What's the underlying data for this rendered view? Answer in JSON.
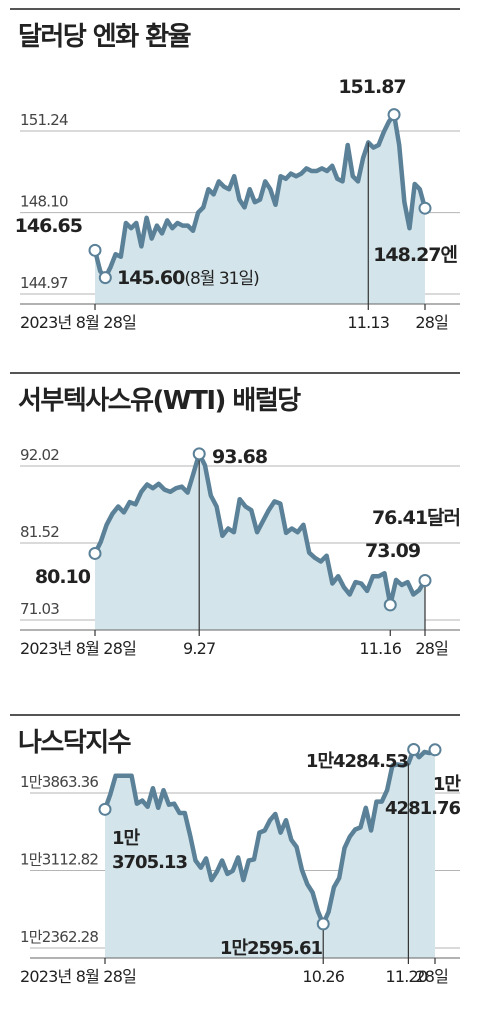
{
  "chart_data": [
    {
      "type": "area",
      "title": "달러당 엔화 환율",
      "yticks": [
        {
          "value": 151.24,
          "label": "151.24"
        },
        {
          "value": 148.1,
          "label": "148.10"
        },
        {
          "value": 144.97,
          "label": "144.97"
        }
      ],
      "ylim": [
        144.97,
        152.0
      ],
      "xlim": [
        0,
        64
      ],
      "xticks": [
        {
          "x": 0,
          "label": "2023년 8월 28일"
        },
        {
          "x": 53,
          "label": "11.13"
        },
        {
          "x": 64,
          "label": "28일"
        }
      ],
      "series": [
        {
          "values": [
            [
              0,
              146.65
            ],
            [
              1,
              145.85
            ],
            [
              2,
              145.6
            ],
            [
              3,
              146.0
            ],
            [
              4,
              146.5
            ],
            [
              5,
              146.4
            ],
            [
              6,
              147.7
            ],
            [
              7,
              147.5
            ],
            [
              8,
              147.7
            ],
            [
              9,
              146.8
            ],
            [
              10,
              147.9
            ],
            [
              11,
              147.1
            ],
            [
              12,
              147.6
            ],
            [
              13,
              147.3
            ],
            [
              14,
              147.8
            ],
            [
              15,
              147.5
            ],
            [
              16,
              147.7
            ],
            [
              17,
              147.6
            ],
            [
              18,
              147.6
            ],
            [
              19,
              147.4
            ],
            [
              20,
              148.1
            ],
            [
              21,
              148.3
            ],
            [
              22,
              149.0
            ],
            [
              23,
              148.8
            ],
            [
              24,
              149.3
            ],
            [
              25,
              149.1
            ],
            [
              26,
              149.0
            ],
            [
              27,
              149.5
            ],
            [
              28,
              148.6
            ],
            [
              29,
              148.3
            ],
            [
              30,
              149.0
            ],
            [
              31,
              148.5
            ],
            [
              32,
              148.6
            ],
            [
              33,
              149.3
            ],
            [
              34,
              149.0
            ],
            [
              35,
              148.4
            ],
            [
              36,
              149.5
            ],
            [
              37,
              149.4
            ],
            [
              38,
              149.6
            ],
            [
              39,
              149.5
            ],
            [
              40,
              149.6
            ],
            [
              41,
              149.8
            ],
            [
              42,
              149.7
            ],
            [
              43,
              149.7
            ],
            [
              44,
              149.8
            ],
            [
              45,
              149.7
            ],
            [
              46,
              149.9
            ],
            [
              47,
              149.4
            ],
            [
              48,
              149.3
            ],
            [
              49,
              150.7
            ],
            [
              50,
              149.5
            ],
            [
              51,
              149.3
            ],
            [
              52,
              150.2
            ],
            [
              53,
              150.8
            ],
            [
              54,
              150.6
            ],
            [
              55,
              150.7
            ],
            [
              56,
              151.2
            ],
            [
              57,
              151.6
            ],
            [
              58,
              151.87
            ],
            [
              59,
              150.7
            ],
            [
              60,
              148.5
            ],
            [
              61,
              147.5
            ],
            [
              62,
              149.2
            ],
            [
              63,
              149.0
            ],
            [
              64,
              148.27
            ]
          ]
        }
      ],
      "annotations": [
        {
          "x": 0,
          "y": 146.65,
          "label": "146.65"
        },
        {
          "x": 2,
          "y": 145.6,
          "label": "145.60",
          "note": "(8월 31일)"
        },
        {
          "x": 58,
          "y": 151.87,
          "label": "151.87"
        },
        {
          "x": 64,
          "y": 148.27,
          "label": "148.27엔"
        }
      ]
    },
    {
      "type": "area",
      "title": "서부텍사스유(WTI)  배럴당",
      "yticks": [
        {
          "value": 92.02,
          "label": "92.02"
        },
        {
          "value": 81.52,
          "label": "81.52"
        },
        {
          "value": 71.03,
          "label": "71.03"
        }
      ],
      "ylim": [
        71.03,
        94.5
      ],
      "xlim": [
        0,
        57
      ],
      "xticks": [
        {
          "x": 0,
          "label": "2023년 8월 28일"
        },
        {
          "x": 18,
          "label": "9.27"
        },
        {
          "x": 51,
          "label": "11.16"
        },
        {
          "x": 57,
          "label": "28일"
        }
      ],
      "series": [
        {
          "values": [
            [
              0,
              80.1
            ],
            [
              1,
              81.7
            ],
            [
              2,
              84.0
            ],
            [
              3,
              85.5
            ],
            [
              4,
              86.5
            ],
            [
              5,
              85.7
            ],
            [
              6,
              87.1
            ],
            [
              7,
              86.8
            ],
            [
              8,
              88.5
            ],
            [
              9,
              89.5
            ],
            [
              10,
              89.0
            ],
            [
              11,
              89.6
            ],
            [
              12,
              88.8
            ],
            [
              13,
              88.5
            ],
            [
              14,
              89.0
            ],
            [
              15,
              89.2
            ],
            [
              16,
              88.4
            ],
            [
              17,
              91.0
            ],
            [
              18,
              93.68
            ],
            [
              19,
              92.1
            ],
            [
              20,
              88.0
            ],
            [
              21,
              86.5
            ],
            [
              22,
              82.5
            ],
            [
              23,
              83.5
            ],
            [
              24,
              83.0
            ],
            [
              25,
              87.5
            ],
            [
              26,
              86.5
            ],
            [
              27,
              86.0
            ],
            [
              28,
              83.0
            ],
            [
              29,
              84.5
            ],
            [
              30,
              86.0
            ],
            [
              31,
              87.2
            ],
            [
              32,
              86.9
            ],
            [
              33,
              82.9
            ],
            [
              34,
              83.5
            ],
            [
              35,
              83.0
            ],
            [
              36,
              84.0
            ],
            [
              37,
              80.2
            ],
            [
              38,
              79.5
            ],
            [
              39,
              79.0
            ],
            [
              40,
              79.8
            ],
            [
              41,
              76.0
            ],
            [
              42,
              77.0
            ],
            [
              43,
              75.5
            ],
            [
              44,
              74.5
            ],
            [
              45,
              76.2
            ],
            [
              46,
              76.0
            ],
            [
              47,
              75.0
            ],
            [
              48,
              77.0
            ],
            [
              49,
              77.0
            ],
            [
              50,
              77.4
            ],
            [
              51,
              73.09
            ],
            [
              52,
              76.5
            ],
            [
              53,
              75.8
            ],
            [
              54,
              76.2
            ],
            [
              55,
              74.5
            ],
            [
              56,
              75.1
            ],
            [
              57,
              76.41
            ]
          ]
        }
      ],
      "annotations": [
        {
          "x": 0,
          "y": 80.1,
          "label": "80.10"
        },
        {
          "x": 18,
          "y": 93.68,
          "label": "93.68"
        },
        {
          "x": 51,
          "y": 73.09,
          "label": "73.09"
        },
        {
          "x": 57,
          "y": 76.41,
          "label": "76.41달러"
        }
      ]
    },
    {
      "type": "area",
      "title": "나스닥지수",
      "yticks": [
        {
          "value": 13863.36,
          "label": "1만3863.36"
        },
        {
          "value": 13112.82,
          "label": "1만3112.82"
        },
        {
          "value": 12362.28,
          "label": "1만2362.28"
        }
      ],
      "ylim": [
        12362.28,
        14500
      ],
      "xlim": [
        0,
        62
      ],
      "xticks": [
        {
          "x": 0,
          "label": "2023년 8월 28일"
        },
        {
          "x": 41,
          "label": "10.26"
        },
        {
          "x": 57,
          "label": "11.20"
        },
        {
          "x": 62,
          "label": "28일"
        }
      ],
      "series": [
        {
          "values": [
            [
              0,
              13705.13
            ],
            [
              1,
              13850
            ],
            [
              2,
              14030
            ],
            [
              3,
              14030
            ],
            [
              4,
              14030
            ],
            [
              5,
              14030
            ],
            [
              6,
              13760
            ],
            [
              7,
              13790
            ],
            [
              8,
              13730
            ],
            [
              9,
              13910
            ],
            [
              10,
              13720
            ],
            [
              11,
              13890
            ],
            [
              12,
              13750
            ],
            [
              13,
              13760
            ],
            [
              14,
              13670
            ],
            [
              15,
              13670
            ],
            [
              16,
              13450
            ],
            [
              17,
              13210
            ],
            [
              18,
              13140
            ],
            [
              19,
              13230
            ],
            [
              20,
              13020
            ],
            [
              21,
              13100
            ],
            [
              22,
              13210
            ],
            [
              23,
              13080
            ],
            [
              24,
              13110
            ],
            [
              25,
              13240
            ],
            [
              26,
              13020
            ],
            [
              27,
              13210
            ],
            [
              28,
              13220
            ],
            [
              29,
              13480
            ],
            [
              30,
              13500
            ],
            [
              31,
              13600
            ],
            [
              32,
              13660
            ],
            [
              33,
              13480
            ],
            [
              34,
              13600
            ],
            [
              35,
              13410
            ],
            [
              36,
              13340
            ],
            [
              37,
              13120
            ],
            [
              38,
              12980
            ],
            [
              39,
              12900
            ],
            [
              40,
              12720
            ],
            [
              41,
              12595.61
            ],
            [
              42,
              12710
            ],
            [
              43,
              12950
            ],
            [
              44,
              13040
            ],
            [
              45,
              13330
            ],
            [
              46,
              13440
            ],
            [
              47,
              13510
            ],
            [
              48,
              13530
            ],
            [
              49,
              13720
            ],
            [
              50,
              13500
            ],
            [
              51,
              13780
            ],
            [
              52,
              13780
            ],
            [
              53,
              13890
            ],
            [
              54,
              14130
            ],
            [
              55,
              14140
            ],
            [
              56,
              14130
            ],
            [
              57,
              14150
            ],
            [
              58,
              14284.53
            ],
            [
              59,
              14210
            ],
            [
              60,
              14260
            ],
            [
              61,
              14250
            ],
            [
              62,
              14281.76
            ]
          ]
        }
      ],
      "annotations": [
        {
          "x": 0,
          "y": 13705.13,
          "label": "1만\n3705.13"
        },
        {
          "x": 41,
          "y": 12595.61,
          "label": "1만2595.61"
        },
        {
          "x": 58,
          "y": 14284.53,
          "label": "1만4284.53"
        },
        {
          "x": 62,
          "y": 14281.76,
          "label": "1만\n4281.76"
        }
      ]
    }
  ],
  "colors": {
    "line": "#5b8198",
    "fill": "#d3e4ea",
    "grid": "#b5b5b5",
    "text": "#222222",
    "tick_text": "#444444",
    "rule": "#555555"
  }
}
